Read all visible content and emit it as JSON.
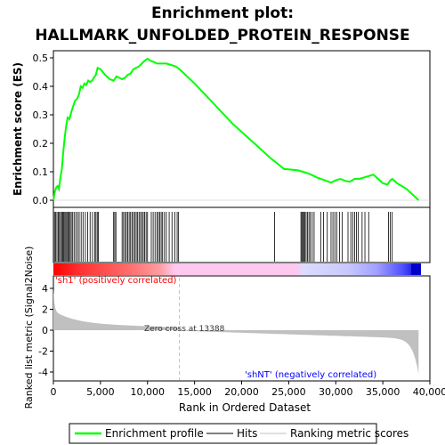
{
  "chart_data": {
    "type": "line",
    "title_line1": "Enrichment plot:",
    "title_line2": "HALLMARK_UNFOLDED_PROTEIN_RESPONSE",
    "ylabel_top": "Enrichment score (ES)",
    "ylabel_bottom": "Ranked list metric (Signal2Noise)",
    "xlabel": "Rank in Ordered Dataset",
    "xlim": [
      0,
      40000
    ],
    "es_ylim": [
      0,
      0.5
    ],
    "metric_ylim": [
      -4,
      4
    ],
    "x_ticks": [
      0,
      5000,
      10000,
      15000,
      20000,
      25000,
      30000,
      35000,
      40000
    ],
    "x_tick_labels": [
      "0",
      "5,000",
      "10,000",
      "15,000",
      "20,000",
      "25,000",
      "30,000",
      "35,000",
      "40,000"
    ],
    "es_ticks": [
      0.0,
      0.1,
      0.2,
      0.3,
      0.4,
      0.5
    ],
    "es_tick_labels": [
      "0.0",
      "0.1",
      "0.2",
      "0.3",
      "0.4",
      "0.5"
    ],
    "metric_ticks": [
      -4,
      -2,
      0,
      2,
      4
    ],
    "metric_tick_labels": [
      "-4",
      "-2",
      "0",
      "2",
      "4"
    ],
    "zero_cross_label": "Zero cross at 13388",
    "zero_cross_rank": 13388,
    "pos_label": "'sh1' (positively correlated)",
    "neg_label": "'shNT' (negatively correlated)",
    "legend": [
      "Enrichment profile",
      "Hits",
      "Ranking metric scores"
    ],
    "colors": {
      "es_line": "#00ff00",
      "hits": "#000000",
      "metric_fill": "#c0c0c0",
      "pos_label": "#ff0000",
      "neg_label": "#0000ff",
      "zero_line": "#c0c0c0"
    },
    "es_profile": [
      [
        0,
        0.0
      ],
      [
        150,
        0.03
      ],
      [
        300,
        0.045
      ],
      [
        450,
        0.05
      ],
      [
        600,
        0.04
      ],
      [
        750,
        0.08
      ],
      [
        900,
        0.11
      ],
      [
        1050,
        0.17
      ],
      [
        1200,
        0.22
      ],
      [
        1350,
        0.26
      ],
      [
        1500,
        0.29
      ],
      [
        1700,
        0.285
      ],
      [
        1900,
        0.31
      ],
      [
        2100,
        0.33
      ],
      [
        2300,
        0.35
      ],
      [
        2500,
        0.355
      ],
      [
        2700,
        0.37
      ],
      [
        2900,
        0.4
      ],
      [
        3100,
        0.395
      ],
      [
        3300,
        0.41
      ],
      [
        3500,
        0.405
      ],
      [
        3700,
        0.42
      ],
      [
        3900,
        0.415
      ],
      [
        4100,
        0.42
      ],
      [
        4300,
        0.43
      ],
      [
        4500,
        0.44
      ],
      [
        4700,
        0.465
      ],
      [
        5000,
        0.46
      ],
      [
        5500,
        0.44
      ],
      [
        6000,
        0.425
      ],
      [
        6400,
        0.42
      ],
      [
        6700,
        0.435
      ],
      [
        7000,
        0.43
      ],
      [
        7300,
        0.425
      ],
      [
        7600,
        0.43
      ],
      [
        7900,
        0.44
      ],
      [
        8200,
        0.445
      ],
      [
        8500,
        0.46
      ],
      [
        8800,
        0.465
      ],
      [
        9100,
        0.47
      ],
      [
        9400,
        0.48
      ],
      [
        9700,
        0.49
      ],
      [
        10000,
        0.497
      ],
      [
        10300,
        0.49
      ],
      [
        10700,
        0.485
      ],
      [
        11000,
        0.48
      ],
      [
        11500,
        0.48
      ],
      [
        12000,
        0.48
      ],
      [
        12500,
        0.475
      ],
      [
        13000,
        0.47
      ],
      [
        13400,
        0.46
      ],
      [
        15000,
        0.41
      ],
      [
        17000,
        0.34
      ],
      [
        19000,
        0.27
      ],
      [
        21000,
        0.21
      ],
      [
        23000,
        0.15
      ],
      [
        24500,
        0.11
      ],
      [
        26000,
        0.105
      ],
      [
        26500,
        0.1
      ],
      [
        27000,
        0.095
      ],
      [
        27500,
        0.088
      ],
      [
        28000,
        0.08
      ],
      [
        28500,
        0.074
      ],
      [
        29000,
        0.068
      ],
      [
        29500,
        0.062
      ],
      [
        30000,
        0.07
      ],
      [
        30500,
        0.075
      ],
      [
        31000,
        0.068
      ],
      [
        31500,
        0.065
      ],
      [
        32000,
        0.075
      ],
      [
        32500,
        0.075
      ],
      [
        33000,
        0.08
      ],
      [
        33500,
        0.085
      ],
      [
        34000,
        0.09
      ],
      [
        34500,
        0.075
      ],
      [
        35000,
        0.06
      ],
      [
        35500,
        0.055
      ],
      [
        35800,
        0.07
      ],
      [
        36000,
        0.075
      ],
      [
        36500,
        0.06
      ],
      [
        37000,
        0.05
      ],
      [
        37500,
        0.04
      ],
      [
        38000,
        0.025
      ],
      [
        38500,
        0.01
      ],
      [
        38800,
        0.0
      ]
    ],
    "hits": [
      120,
      250,
      380,
      520,
      640,
      760,
      880,
      990,
      1100,
      1210,
      1320,
      1430,
      1540,
      1650,
      1780,
      1900,
      2050,
      2200,
      2380,
      2560,
      2740,
      2950,
      3150,
      3400,
      3650,
      3900,
      4150,
      4380,
      4520,
      4660,
      4780,
      6400,
      6520,
      6640,
      7300,
      7450,
      7600,
      7750,
      7900,
      8050,
      8200,
      8350,
      8500,
      8650,
      8800,
      8950,
      9100,
      9250,
      9400,
      9550,
      9700,
      9850,
      10000,
      10400,
      10600,
      10800,
      11000,
      11150,
      11300,
      11450,
      11600,
      11800,
      12000,
      12300,
      12600,
      12900,
      13150,
      13300,
      23500,
      26300,
      26400,
      26500,
      26600,
      26700,
      26850,
      27000,
      27150,
      27300,
      27500,
      27700,
      28400,
      28700,
      29100,
      29500,
      29700,
      29900,
      30100,
      30400,
      30700,
      31300,
      31600,
      31800,
      32000,
      32200,
      32400,
      32800,
      33100,
      33500,
      35600,
      35800,
      36000
    ]
  }
}
